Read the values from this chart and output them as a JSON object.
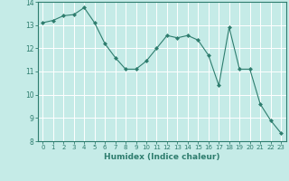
{
  "x": [
    0,
    1,
    2,
    3,
    4,
    5,
    6,
    7,
    8,
    9,
    10,
    11,
    12,
    13,
    14,
    15,
    16,
    17,
    18,
    19,
    20,
    21,
    22,
    23
  ],
  "y": [
    13.1,
    13.2,
    13.4,
    13.45,
    13.75,
    13.1,
    12.2,
    11.6,
    11.1,
    11.1,
    11.45,
    12.0,
    12.55,
    12.45,
    12.55,
    12.35,
    11.7,
    10.4,
    12.9,
    11.1,
    11.1,
    9.6,
    8.9,
    8.35
  ],
  "line_color": "#2e7d6e",
  "marker": "D",
  "marker_size": 2.0,
  "bg_color": "#c5ebe7",
  "grid_color": "#ffffff",
  "xlabel": "Humidex (Indice chaleur)",
  "xlim": [
    -0.5,
    23.5
  ],
  "ylim": [
    8,
    14
  ],
  "yticks": [
    8,
    9,
    10,
    11,
    12,
    13,
    14
  ],
  "xticks": [
    0,
    1,
    2,
    3,
    4,
    5,
    6,
    7,
    8,
    9,
    10,
    11,
    12,
    13,
    14,
    15,
    16,
    17,
    18,
    19,
    20,
    21,
    22,
    23
  ],
  "tick_color": "#2e7d6e",
  "axis_color": "#2e7d6e",
  "xlabel_fontsize": 6.5,
  "tick_fontsize": 5.0
}
